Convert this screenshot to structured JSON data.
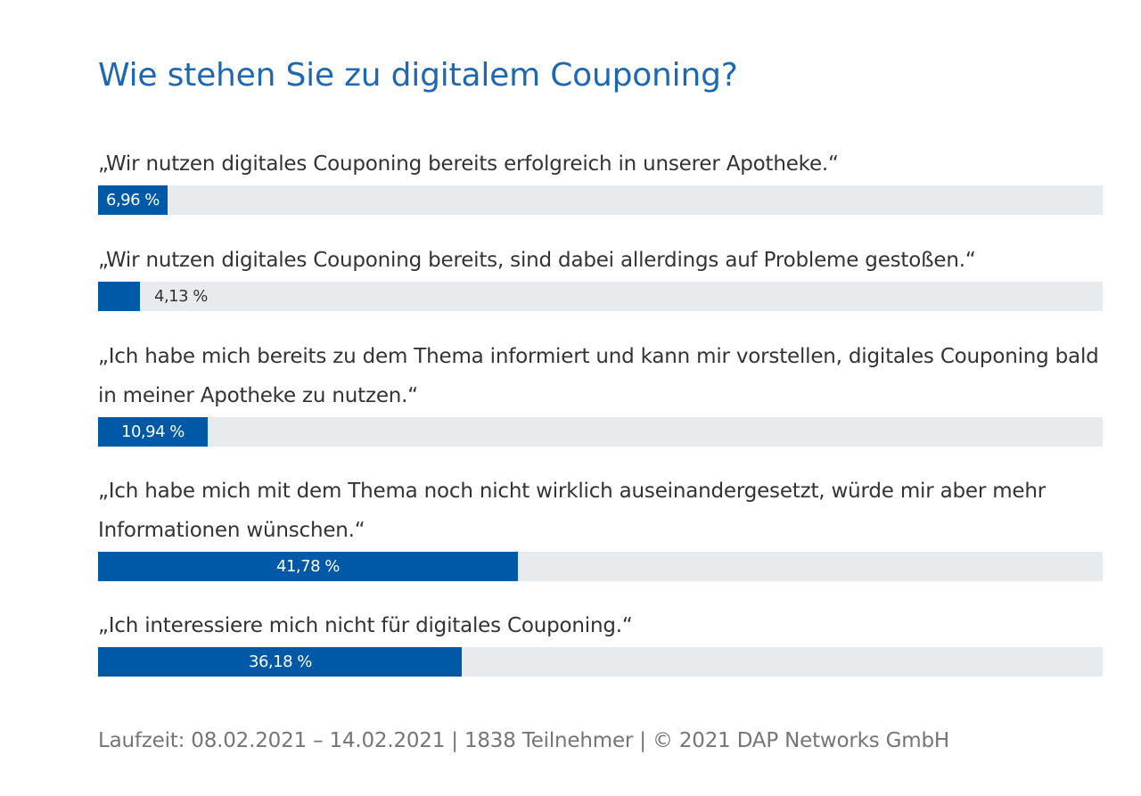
{
  "chart_data": {
    "type": "bar",
    "orientation": "horizontal",
    "title": "Wie stehen Sie zu digitalem Couponing?",
    "categories": [
      "„Wir nutzen digitales Couponing bereits erfolgreich in unserer Apotheke.“",
      "„Wir nutzen digitales Couponing bereits, sind dabei allerdings auf Probleme gestoßen.“",
      "„Ich habe mich bereits zu dem Thema informiert und kann mir vorstellen, digitales Couponing bald in meiner Apotheke zu nutzen.“",
      "„Ich habe mich mit dem Thema noch nicht wirklich auseinandergesetzt, würde mir aber mehr Informationen wünschen.“",
      "„Ich interessiere mich nicht für digitales Couponing.“"
    ],
    "values": [
      6.96,
      4.13,
      10.94,
      41.78,
      36.18
    ],
    "value_labels": [
      "6,96 %",
      "4,13 %",
      "10,94 %",
      "41,78 %",
      "36,18 %"
    ],
    "xlim": [
      0,
      100
    ],
    "bar_color": "#0059a6",
    "track_color": "#e8ebee",
    "title_color": "#1e67b2"
  },
  "footer": "Laufzeit: 08.02.2021 – 14.02.2021 | 1838 Teilnehmer | © 2021 DAP Networks GmbH"
}
